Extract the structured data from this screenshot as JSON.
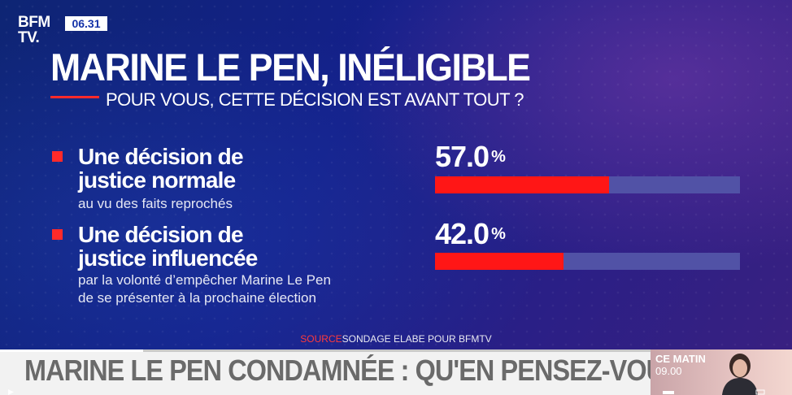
{
  "channel": {
    "logo_line1": "BFM",
    "logo_line2": "TV.",
    "time": "06.31"
  },
  "header": {
    "title": "MARINE LE PEN, INÉLIGIBLE",
    "subtitle": "POUR VOUS, CETTE DÉCISION EST AVANT TOUT ?"
  },
  "chart_data": {
    "type": "bar",
    "title": "MARINE LE PEN, INÉLIGIBLE",
    "subtitle": "POUR VOUS, CETTE DÉCISION EST AVANT TOUT ?",
    "unit": "%",
    "ylim": [
      0,
      100
    ],
    "categories": [
      {
        "label": "Une décision de justice normale",
        "label_line1": "Une décision de",
        "label_line2": "justice normale",
        "detail_lines": [
          "au vu des faits reprochés"
        ],
        "value": 57.0,
        "value_label": "57.0"
      },
      {
        "label": "Une décision de justice influencée",
        "label_line1": "Une décision de",
        "label_line2": "justice influencée",
        "detail_lines": [
          "par la volonté d’empêcher Marine Le Pen",
          "de se présenter à la prochaine élection"
        ],
        "value": 42.0,
        "value_label": "42.0"
      }
    ],
    "colors": {
      "fill": "#ff1616",
      "track": "#5152a6",
      "marker": "#ff2a2a"
    }
  },
  "source": {
    "label": "SOURCE",
    "text": "SONDAGE ELABE POUR BFMTV"
  },
  "ticker": {
    "headline": "MARINE LE PEN CONDAMNÉE : QU'EN PENSEZ-VOUS ?",
    "show_label": "CE MATIN",
    "show_time": "09.00",
    "playback_progress": 0.22
  }
}
